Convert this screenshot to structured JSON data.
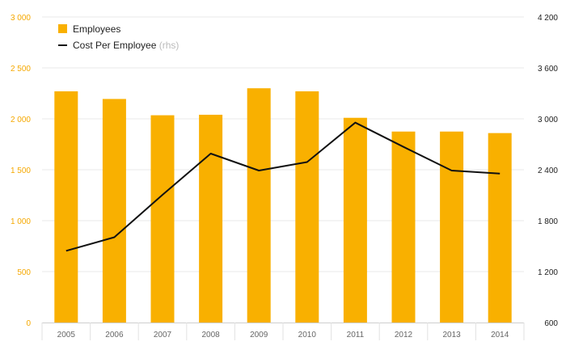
{
  "chart_data": {
    "type": "bar",
    "categories": [
      "2005",
      "2006",
      "2007",
      "2008",
      "2009",
      "2010",
      "2011",
      "2012",
      "2013",
      "2014"
    ],
    "series": [
      {
        "name": "Employees",
        "type": "bar",
        "axis": "left",
        "color": "#f9b000",
        "values": [
          2270,
          2195,
          2035,
          2040,
          2300,
          2270,
          2010,
          1875,
          1875,
          1860
        ]
      },
      {
        "name": "Cost Per Employee",
        "name_suffix": "(rhs)",
        "type": "line",
        "axis": "right",
        "color": "#111111",
        "values": [
          1445,
          1605,
          2105,
          2590,
          2390,
          2490,
          2955,
          2670,
          2390,
          2355
        ]
      }
    ],
    "y_left": {
      "ylim": [
        0,
        3000
      ],
      "ticks": [
        0,
        500,
        1000,
        1500,
        2000,
        2500,
        3000
      ],
      "tick_labels": [
        "0",
        "500",
        "1 000",
        "1 500",
        "2 000",
        "2 500",
        "3 000"
      ],
      "color": "#f5a800"
    },
    "y_right": {
      "ylim": [
        600,
        4200
      ],
      "ticks": [
        600,
        1200,
        1800,
        2400,
        3000,
        3600,
        4200
      ],
      "tick_labels": [
        "600",
        "1 200",
        "1 800",
        "2 400",
        "3 000",
        "3 600",
        "4 200"
      ],
      "color": "#222222"
    },
    "grid": true,
    "legend": "top-left"
  }
}
